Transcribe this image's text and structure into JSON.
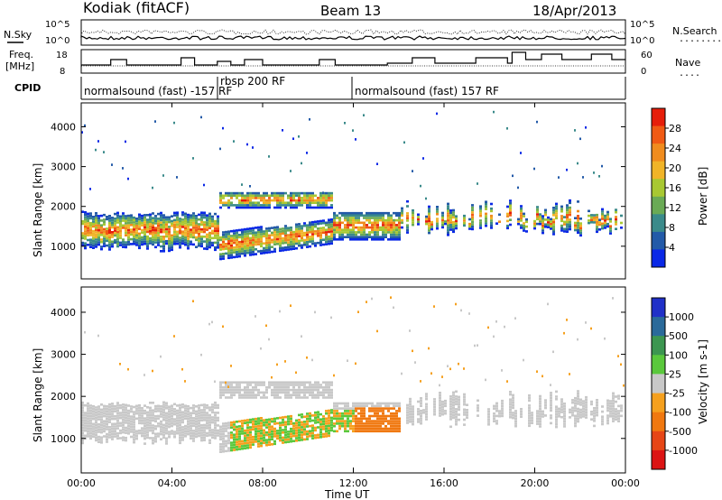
{
  "header": {
    "station": "Kodiak (fitACF)",
    "beam": "Beam 13",
    "date": "18/Apr/2013"
  },
  "noise_panel": {
    "left_label": "N.Sky",
    "right_label": "N.Search",
    "right_legend": "........",
    "tick_top_left": "10^5",
    "tick_bottom_left": "10^0",
    "tick_top_right": "10^5",
    "tick_bottom_right": "10^0"
  },
  "freq_panel": {
    "left_label_line1": "Freq.",
    "left_label_line2": "[MHz]",
    "right_label": "Nave",
    "right_legend": "....",
    "left_ticks": [
      "18",
      "8"
    ],
    "right_ticks": [
      "60",
      "0"
    ]
  },
  "cpid_panel": {
    "label": "CPID",
    "segments": [
      {
        "text": "normalsound (fast) -157 RF"
      },
      {
        "text": "rbsp 200 RF"
      },
      {
        "text": "normalsound (fast) 157 RF"
      }
    ]
  },
  "colors": {
    "power_scale": [
      "#0a28e6",
      "#235aa8",
      "#3a8a8a",
      "#6aaa55",
      "#a8c832",
      "#f0b428",
      "#f08c1e",
      "#f05a14",
      "#e61e0a"
    ],
    "velocity_scale": [
      "#2030c8",
      "#2a6a9a",
      "#3c9650",
      "#5ac83c",
      "#c8c8c8",
      "#f5a01e",
      "#f07810",
      "#e64616",
      "#dc1414"
    ]
  },
  "chart_data": [
    {
      "type": "heatmap",
      "quantity": "Power",
      "ylabel": "Slant Range [km]",
      "y_ticks": [
        "1000",
        "2000",
        "3000",
        "4000"
      ],
      "ylim": [
        180,
        4600
      ],
      "colorbar_label": "Power [dB]",
      "colorbar_ticks": [
        "4",
        "8",
        "12",
        "16",
        "20",
        "24",
        "28"
      ],
      "colorbar_range": [
        0,
        32
      ]
    },
    {
      "type": "heatmap",
      "quantity": "Velocity",
      "ylabel": "Slant Range [km]",
      "y_ticks": [
        "1000",
        "2000",
        "3000",
        "4000"
      ],
      "ylim": [
        180,
        4600
      ],
      "colorbar_label": "Velocity [m s-1]",
      "colorbar_ticks": [
        "1000",
        "500",
        "100",
        "25",
        "-25",
        "-100",
        "-500",
        "-1000"
      ],
      "x_ticks": [
        "00:00",
        "04:00",
        "08:00",
        "12:00",
        "16:00",
        "20:00",
        "00:00"
      ],
      "xlabel": "Time UT",
      "xlim_hours": [
        0,
        24
      ]
    }
  ]
}
